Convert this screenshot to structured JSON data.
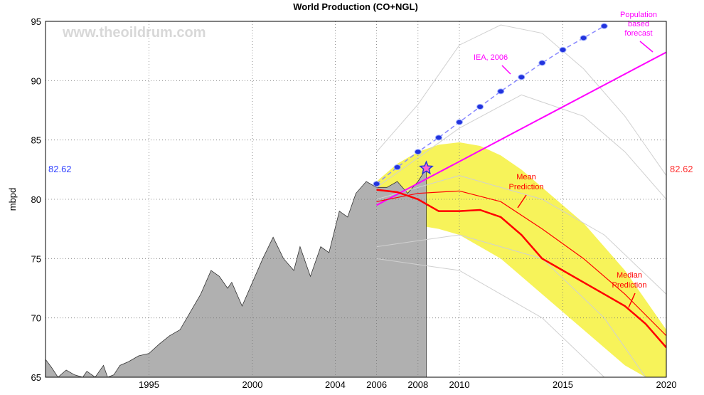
{
  "chart_data": {
    "type": "line",
    "title": "World Production (CO+NGL)",
    "y_label": "mbpd",
    "watermark": "www.theoildrum.com",
    "xlim": [
      1990,
      2020
    ],
    "ylim": [
      65,
      95
    ],
    "xticks": [
      1995,
      2000,
      2004,
      2006,
      2008,
      2010,
      2015,
      2020
    ],
    "yticks": [
      65,
      70,
      75,
      80,
      85,
      90,
      95
    ],
    "grid": true,
    "band": {
      "color": "#f7f35a",
      "x": [
        2006,
        2007,
        2008,
        2009,
        2010,
        2011,
        2012,
        2013,
        2014,
        2015,
        2016,
        2017,
        2018,
        2019,
        2020
      ],
      "lower": [
        77,
        77.5,
        77.8,
        77.5,
        77,
        76,
        75,
        73.5,
        72,
        70.5,
        69,
        67.5,
        66,
        65,
        65
      ],
      "upper": [
        81.5,
        83,
        84,
        84.6,
        84.8,
        84.5,
        83.7,
        82.5,
        81,
        79.5,
        78,
        76,
        74,
        71.5,
        69
      ]
    },
    "area": {
      "color": "#b0b0b0",
      "x": [
        1990,
        1990.3,
        1990.6,
        1991,
        1991.4,
        1991.8,
        1992,
        1992.4,
        1992.8,
        1993,
        1993.3,
        1993.6,
        1994,
        1994.5,
        1995,
        1995.5,
        1996,
        1996.5,
        1997,
        1997.5,
        1998,
        1998.4,
        1998.8,
        1999,
        1999.5,
        2000,
        2000.5,
        2001,
        2001.5,
        2002,
        2002.3,
        2002.8,
        2003.3,
        2003.7,
        2004.2,
        2004.6,
        2005,
        2005.5,
        2006,
        2006.5,
        2007,
        2007.5,
        2008,
        2008.4
      ],
      "values": [
        66.5,
        65.8,
        65,
        65.6,
        65.2,
        65,
        65.5,
        65,
        66,
        65,
        65.2,
        66,
        66.3,
        66.8,
        67,
        67.8,
        68.5,
        69,
        70.5,
        72,
        74,
        73.5,
        72.5,
        73,
        71,
        73,
        75,
        76.8,
        75,
        74,
        76,
        73.5,
        76,
        75.5,
        79,
        78.5,
        80.5,
        81.5,
        81,
        81,
        81.5,
        80.5,
        81.5,
        82.6
      ]
    },
    "series": [
      {
        "color": "#d0d0d0",
        "width": 1,
        "x": [
          2006,
          2008,
          2010,
          2012,
          2014,
          2016,
          2018,
          2020
        ],
        "values": [
          84,
          88,
          93,
          94.7,
          94,
          91,
          87,
          82
        ]
      },
      {
        "color": "#d0d0d0",
        "width": 1,
        "x": [
          2006,
          2010,
          2013,
          2016,
          2018,
          2020
        ],
        "values": [
          81,
          86,
          88.8,
          87,
          84,
          80
        ]
      },
      {
        "color": "#d0d0d0",
        "width": 1,
        "x": [
          2006,
          2010,
          2014,
          2017,
          2020
        ],
        "values": [
          80,
          82,
          80,
          77,
          72
        ]
      },
      {
        "color": "#d0d0d0",
        "width": 1,
        "x": [
          2006,
          2010,
          2014,
          2017,
          2019
        ],
        "values": [
          76,
          77,
          75,
          70,
          65
        ]
      },
      {
        "color": "#d0d0d0",
        "width": 1,
        "x": [
          2006,
          2010,
          2014,
          2017
        ],
        "values": [
          75,
          74,
          70,
          65
        ]
      },
      {
        "color": "#ff00ff",
        "width": 2,
        "x": [
          2006,
          2020
        ],
        "values": [
          79.5,
          92.4
        ]
      },
      {
        "color": "#ff0000",
        "width": 1.2,
        "x": [
          2006,
          2008,
          2010,
          2012,
          2014,
          2016,
          2018,
          2020
        ],
        "values": [
          79.8,
          80.5,
          80.7,
          79.8,
          77.5,
          75,
          72,
          68.5
        ]
      },
      {
        "color": "#ff0000",
        "width": 2.5,
        "x": [
          2006,
          2007,
          2008,
          2009,
          2010,
          2011,
          2012,
          2013,
          2014,
          2015,
          2016,
          2017,
          2018,
          2019,
          2020
        ],
        "values": [
          80.8,
          80.6,
          80,
          79,
          79,
          79.1,
          78.5,
          77,
          75,
          74,
          73,
          72,
          71,
          69.5,
          67.5
        ]
      },
      {
        "color": "#8888ff",
        "width": 1.5,
        "dashed": true,
        "markers": true,
        "marker_color": "#2233dd",
        "x": [
          2006,
          2007,
          2008,
          2009,
          2010,
          2011,
          2012,
          2013,
          2014,
          2015,
          2016,
          2017
        ],
        "values": [
          81.3,
          82.7,
          84,
          85.2,
          86.5,
          87.8,
          89.1,
          90.3,
          91.5,
          92.6,
          93.6,
          94.6
        ]
      }
    ],
    "marker": {
      "x": 2008.4,
      "y": 82.62,
      "color": "#ff66cc"
    },
    "annotations": [
      {
        "lines": [
          "Population",
          "based",
          "forecast"
        ],
        "color": "#ff00ff"
      },
      {
        "lines": [
          "IEA, 2006"
        ],
        "color": "#ff00ff"
      },
      {
        "lines": [
          "Mean",
          "Prediction"
        ],
        "color": "#ff0000"
      },
      {
        "lines": [
          "Median",
          "Prediction"
        ],
        "color": "#ff0000"
      }
    ]
  }
}
